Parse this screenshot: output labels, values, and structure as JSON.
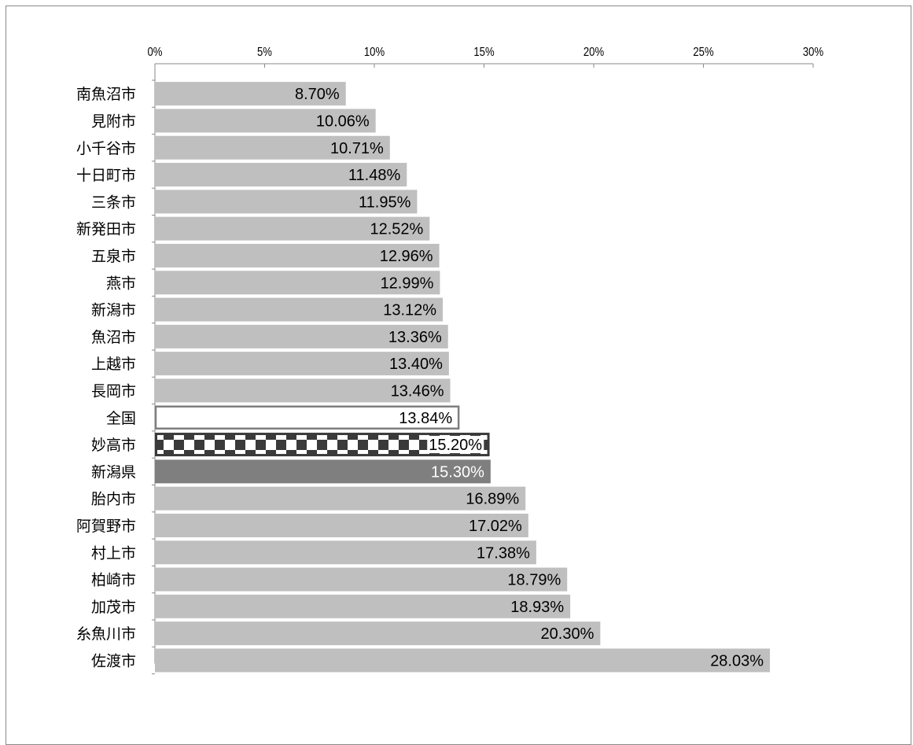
{
  "chart_data": {
    "type": "bar",
    "orientation": "horizontal",
    "title": "",
    "xlabel": "",
    "ylabel": "",
    "xlim": [
      0,
      30
    ],
    "x_ticks": [
      "0%",
      "5%",
      "10%",
      "15%",
      "20%",
      "25%",
      "30%"
    ],
    "x_tick_values": [
      0,
      5,
      10,
      15,
      20,
      25,
      30
    ],
    "x_axis_position": "top",
    "grid": false,
    "legend": "none",
    "categories": [
      "南魚沼市",
      "見附市",
      "小千谷市",
      "十日町市",
      "三条市",
      "新発田市",
      "五泉市",
      "燕市",
      "新潟市",
      "魚沼市",
      "上越市",
      "長岡市",
      "全国",
      "妙高市",
      "新潟県",
      "胎内市",
      "阿賀野市",
      "村上市",
      "柏崎市",
      "加茂市",
      "糸魚川市",
      "佐渡市"
    ],
    "values": [
      8.7,
      10.06,
      10.71,
      11.48,
      11.95,
      12.52,
      12.96,
      12.99,
      13.12,
      13.36,
      13.4,
      13.46,
      13.84,
      15.2,
      15.3,
      16.89,
      17.02,
      17.38,
      18.79,
      18.93,
      20.3,
      28.03
    ],
    "value_labels": [
      "8.70%",
      "10.06%",
      "10.71%",
      "11.48%",
      "11.95%",
      "12.52%",
      "12.96%",
      "12.99%",
      "13.12%",
      "13.36%",
      "13.40%",
      "13.46%",
      "13.84%",
      "15.20%",
      "15.30%",
      "16.89%",
      "17.02%",
      "17.38%",
      "18.79%",
      "18.93%",
      "20.30%",
      "28.03%"
    ],
    "bar_styles": [
      "default",
      "default",
      "default",
      "default",
      "default",
      "default",
      "default",
      "default",
      "default",
      "default",
      "default",
      "default",
      "outline",
      "checker",
      "dark",
      "default",
      "default",
      "default",
      "default",
      "default",
      "default",
      "default"
    ],
    "colors": {
      "default": "#bfbfbf",
      "dark": "#7f7f7f",
      "outline_fill": "#ffffff",
      "outline_stroke": "#7f7f7f",
      "checker_dark": "#3a3a3a",
      "checker_light": "#ffffff",
      "axis": "#8a8a8a",
      "text": "#000000",
      "dark_label": "#ffffff"
    }
  }
}
